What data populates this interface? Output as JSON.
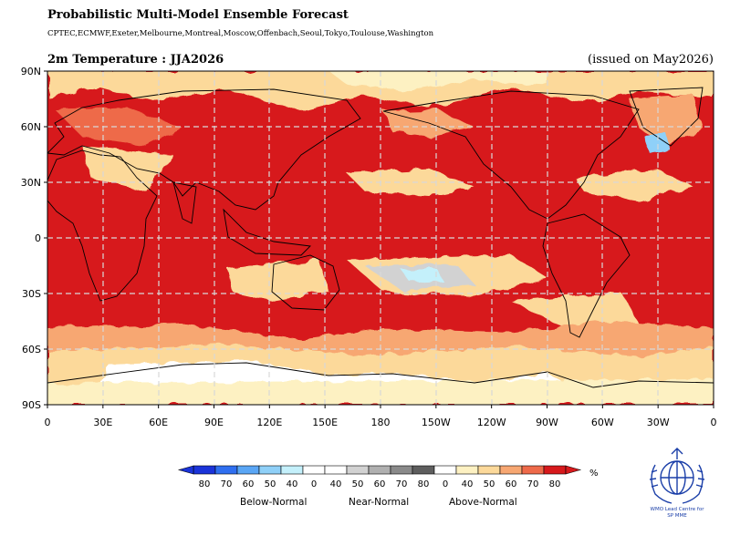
{
  "header": {
    "title": "Probabilistic Multi-Model Ensemble Forecast",
    "models": "CPTEC,ECMWF,Exeter,Melbourne,Montreal,Moscow,Offenbach,Seoul,Tokyo,Toulouse,Washington",
    "variable": "2m Temperature : JJA2026",
    "issued": "(issued on May2026)"
  },
  "map": {
    "projection": "equirectangular, 0 to 360 longitude",
    "lat_labels": [
      "90N",
      "60N",
      "30N",
      "0",
      "30S",
      "60S",
      "90S"
    ],
    "lon_labels": [
      "0",
      "30E",
      "60E",
      "90E",
      "120E",
      "150E",
      "180",
      "150W",
      "120W",
      "90W",
      "60W",
      "30W",
      "0"
    ],
    "gridlines": "dashed"
  },
  "colorbar": {
    "numbers": [
      "80",
      "70",
      "60",
      "50",
      "40",
      "0",
      "40",
      "50",
      "60",
      "70",
      "80",
      "0",
      "40",
      "50",
      "60",
      "70",
      "80"
    ],
    "unit": "%",
    "categories": [
      "Below-Normal",
      "Near-Normal",
      "Above-Normal"
    ],
    "colors": [
      "#1a33d9",
      "#2f6ff0",
      "#5aa6f5",
      "#8fd0f8",
      "#c4f0fb",
      "#ffffff",
      "#ffffff",
      "#d2d2d2",
      "#b0b0b0",
      "#8a8a8a",
      "#5e5e5e",
      "#ffffff",
      "#fdf1c2",
      "#fcd99a",
      "#f7a772",
      "#ee6a4a",
      "#d7191c"
    ]
  },
  "logo": {
    "name": "WMO Lead Centre for SP MME",
    "line1": "WMO Lead Centre for",
    "line2": "SP MME"
  }
}
